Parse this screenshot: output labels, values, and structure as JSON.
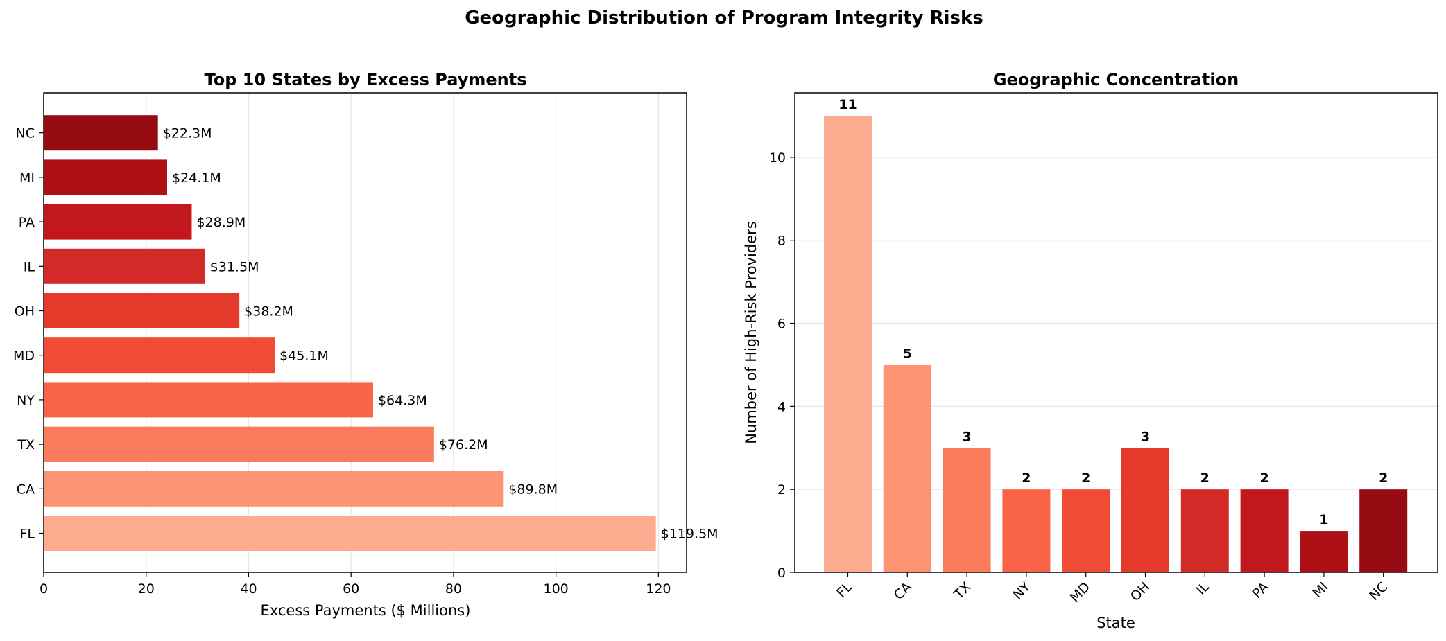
{
  "figure": {
    "suptitle": "Geographic Distribution of Program Integrity Risks"
  },
  "colors": {
    "FL": "#fcab8f",
    "CA": "#fc9474",
    "TX": "#fb7c5c",
    "NY": "#f96346",
    "MD": "#f14a35",
    "OH": "#e33a2c",
    "IL": "#d22a26",
    "PA": "#c1171d",
    "MI": "#ad1116",
    "NC": "#970b13"
  },
  "chart_data": [
    {
      "type": "bar",
      "orientation": "horizontal",
      "title": "Top 10 States by Excess Payments",
      "xlabel": "Excess Payments ($ Millions)",
      "ylabel": "",
      "categories": [
        "FL",
        "CA",
        "TX",
        "NY",
        "MD",
        "OH",
        "IL",
        "PA",
        "MI",
        "NC"
      ],
      "values": [
        119.5,
        89.8,
        76.2,
        64.3,
        45.1,
        38.2,
        31.5,
        28.9,
        24.1,
        22.3
      ],
      "data_labels": [
        "$119.5M",
        "$89.8M",
        "$76.2M",
        "$64.3M",
        "$45.1M",
        "$38.2M",
        "$31.5M",
        "$28.9M",
        "$24.1M",
        "$22.3M"
      ],
      "xlim": [
        0,
        125.5
      ],
      "xticks": [
        0,
        20,
        40,
        60,
        80,
        100,
        120
      ],
      "grid": "x"
    },
    {
      "type": "bar",
      "orientation": "vertical",
      "title": "Geographic Concentration",
      "xlabel": "State",
      "ylabel": "Number of High-Risk Providers",
      "categories": [
        "FL",
        "CA",
        "TX",
        "NY",
        "MD",
        "OH",
        "IL",
        "PA",
        "MI",
        "NC"
      ],
      "values": [
        11,
        5,
        3,
        2,
        2,
        3,
        2,
        2,
        1,
        2
      ],
      "data_labels": [
        "11",
        "5",
        "3",
        "2",
        "2",
        "3",
        "2",
        "2",
        "1",
        "2"
      ],
      "ylim": [
        0,
        11.55
      ],
      "yticks": [
        0,
        2,
        4,
        6,
        8,
        10
      ],
      "grid": "y"
    }
  ]
}
